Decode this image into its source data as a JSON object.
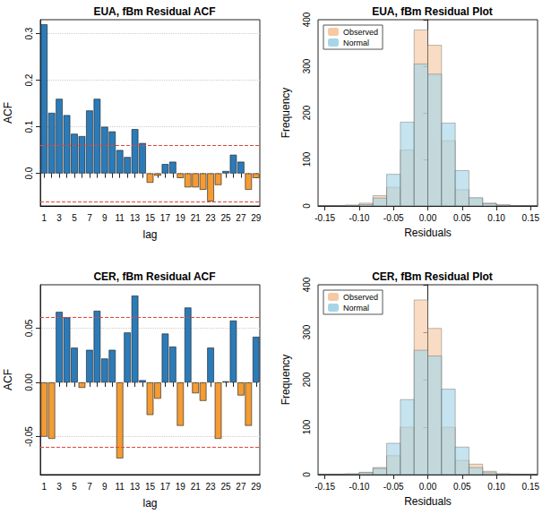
{
  "chart_data": [
    {
      "type": "bar",
      "title": "EUA, fBm Residual ACF",
      "x_label": "lag",
      "y_label": "ACF",
      "categories": [
        "1",
        null,
        "3",
        null,
        "5",
        null,
        "7",
        null,
        "9",
        null,
        "11",
        null,
        "13",
        null,
        "15",
        null,
        "17",
        null,
        "19",
        null,
        "21",
        null,
        "23",
        null,
        "25",
        null,
        "27",
        null,
        "29"
      ],
      "values": [
        0.32,
        0.13,
        0.16,
        0.125,
        0.085,
        0.08,
        0.135,
        0.16,
        0.1,
        0.09,
        0.05,
        0.035,
        0.095,
        0.065,
        -0.02,
        -0.005,
        0.02,
        0.025,
        -0.01,
        -0.03,
        -0.03,
        -0.035,
        -0.06,
        -0.025,
        0.005,
        0.04,
        0.025,
        -0.035,
        -0.01
      ],
      "colors": [
        "#2b7bb9",
        "#2b7bb9",
        "#2b7bb9",
        "#2b7bb9",
        "#2b7bb9",
        "#2b7bb9",
        "#2b7bb9",
        "#2b7bb9",
        "#2b7bb9",
        "#2b7bb9",
        "#2b7bb9",
        "#2b7bb9",
        "#2b7bb9",
        "#2b7bb9",
        "#f39c34",
        "#f39c34",
        "#2b7bb9",
        "#2b7bb9",
        "#f39c34",
        "#f39c34",
        "#f39c34",
        "#f39c34",
        "#f39c34",
        "#f39c34",
        "#2b7bb9",
        "#2b7bb9",
        "#2b7bb9",
        "#f39c34",
        "#f39c34"
      ],
      "confidence_limits": [
        -0.058,
        0.058
      ],
      "ylim": [
        -0.07,
        0.33
      ],
      "yticks": [
        {
          "value": 0,
          "label": "0.0"
        },
        0.1,
        0.2,
        0.3
      ],
      "grid": true
    },
    {
      "type": "histogram",
      "title": "EUA, fBm Residual Plot",
      "x_label": "Residuals",
      "y_label": "Frequency",
      "bins": [
        -0.16,
        -0.14,
        -0.12,
        -0.1,
        -0.08,
        -0.06,
        -0.04,
        -0.02,
        0,
        0.02,
        0.04,
        0.06,
        0.08,
        0.1,
        0.12,
        0.14,
        0.16
      ],
      "series": [
        {
          "name": "Observed",
          "color": "#f6c9a3",
          "values": [
            0,
            1,
            2,
            6,
            22,
            40,
            120,
            378,
            345,
            140,
            35,
            16,
            6,
            3,
            1,
            0
          ]
        },
        {
          "name": "Normal",
          "color": "#a6d5e8",
          "values": [
            0,
            0,
            1,
            3,
            17,
            68,
            180,
            305,
            283,
            178,
            76,
            18,
            5,
            1,
            0,
            0
          ]
        }
      ],
      "xlim": [
        -0.16,
        0.16
      ],
      "xticks": [
        -0.15,
        {
          "value": -0.1,
          "label": "-0.10"
        },
        -0.05,
        {
          "value": 0,
          "label": "0.00"
        },
        0.05,
        {
          "value": 0.1,
          "label": "0.10"
        },
        0.15
      ],
      "ylim": [
        0,
        400
      ],
      "yticks": [
        0,
        100,
        200,
        300,
        400
      ],
      "legend": "upper left",
      "grid": false
    },
    {
      "type": "bar",
      "title": "CER, fBm Residual ACF",
      "x_label": "lag",
      "y_label": "ACF",
      "categories": [
        "1",
        null,
        "3",
        null,
        "5",
        null,
        "7",
        null,
        "9",
        null,
        "11",
        null,
        "13",
        null,
        "15",
        null,
        "17",
        null,
        "19",
        null,
        "21",
        null,
        "23",
        null,
        "25",
        null,
        "27",
        null,
        "29"
      ],
      "values": [
        -0.05,
        -0.052,
        0.065,
        0.06,
        0.032,
        -0.005,
        0.03,
        0.066,
        0.022,
        0.03,
        -0.07,
        0.046,
        0.08,
        0.002,
        -0.03,
        -0.015,
        0.045,
        0.033,
        -0.04,
        0.069,
        -0.01,
        -0.017,
        0.032,
        -0.052,
        0.001,
        0.057,
        -0.012,
        -0.04,
        0.042
      ],
      "colors": [
        "#f39c34",
        "#f39c34",
        "#2b7bb9",
        "#2b7bb9",
        "#2b7bb9",
        "#f39c34",
        "#2b7bb9",
        "#2b7bb9",
        "#2b7bb9",
        "#2b7bb9",
        "#f39c34",
        "#2b7bb9",
        "#2b7bb9",
        "#2b7bb9",
        "#f39c34",
        "#f39c34",
        "#2b7bb9",
        "#2b7bb9",
        "#f39c34",
        "#2b7bb9",
        "#f39c34",
        "#f39c34",
        "#2b7bb9",
        "#f39c34",
        "#2b7bb9",
        "#2b7bb9",
        "#f39c34",
        "#f39c34",
        "#2b7bb9"
      ],
      "confidence_limits": [
        -0.058,
        0.058
      ],
      "ylim": [
        -0.085,
        0.09
      ],
      "yticks": [
        -0.05,
        {
          "value": 0,
          "label": "0.00"
        },
        0.05
      ],
      "grid": true
    },
    {
      "type": "histogram",
      "title": "CER, fBm Residual Plot",
      "x_label": "Residuals",
      "y_label": "Frequency",
      "bins": [
        -0.16,
        -0.14,
        -0.12,
        -0.1,
        -0.08,
        -0.06,
        -0.04,
        -0.02,
        0,
        0.02,
        0.04,
        0.06,
        0.08,
        0.1,
        0.12,
        0.14,
        0.16
      ],
      "series": [
        {
          "name": "Observed",
          "color": "#f6c9a3",
          "values": [
            0,
            1,
            2,
            5,
            15,
            40,
            100,
            368,
            308,
            100,
            30,
            22,
            7,
            2,
            1,
            0
          ]
        },
        {
          "name": "Normal",
          "color": "#a6d5e8",
          "values": [
            0,
            0,
            1,
            4,
            13,
            66,
            158,
            262,
            250,
            180,
            58,
            15,
            4,
            1,
            0,
            0
          ]
        }
      ],
      "xlim": [
        -0.16,
        0.16
      ],
      "xticks": [
        -0.15,
        {
          "value": -0.1,
          "label": "-0.10"
        },
        -0.05,
        {
          "value": 0,
          "label": "0.00"
        },
        0.05,
        {
          "value": 0.1,
          "label": "0.10"
        },
        0.15
      ],
      "ylim": [
        0,
        400
      ],
      "yticks": [
        0,
        100,
        200,
        300,
        400
      ],
      "legend": "upper left",
      "grid": false
    }
  ]
}
